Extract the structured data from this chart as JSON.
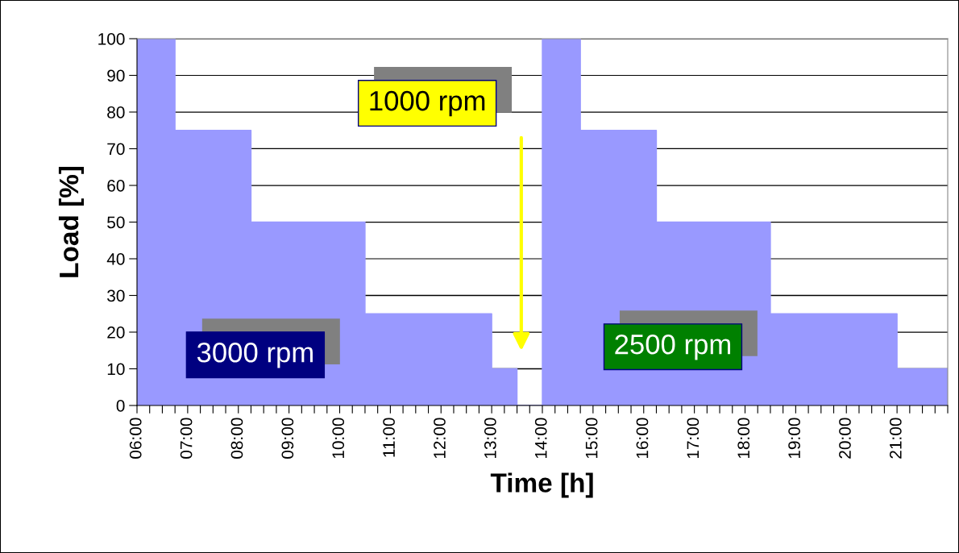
{
  "chart_data": {
    "type": "area",
    "xlabel": "Time [h]",
    "ylabel": "Load [%]",
    "series": [
      {
        "color": "#9999ff",
        "x": [
          6,
          6.75,
          6.75,
          8.25,
          8.25,
          10.5,
          10.5,
          13,
          13,
          13.5,
          13.5,
          14,
          14,
          14.75,
          14.75,
          16.25,
          16.25,
          18.5,
          18.5,
          21,
          21,
          22
        ],
        "values": [
          100,
          100,
          75,
          75,
          50,
          50,
          25,
          25,
          10,
          10,
          0,
          0,
          100,
          100,
          75,
          75,
          50,
          50,
          25,
          25,
          10,
          10
        ]
      }
    ],
    "xlim": [
      6,
      22
    ],
    "ylim": [
      0,
      100
    ],
    "xticks": [
      {
        "value": 6,
        "label": "06:00"
      },
      {
        "value": 6.25,
        "label": null
      },
      {
        "value": 6.5,
        "label": null
      },
      {
        "value": 6.75,
        "label": null
      },
      {
        "value": 7,
        "label": "07:00"
      },
      {
        "value": 7.25,
        "label": null
      },
      {
        "value": 7.5,
        "label": null
      },
      {
        "value": 7.75,
        "label": null
      },
      {
        "value": 8,
        "label": "08:00"
      },
      {
        "value": 8.25,
        "label": null
      },
      {
        "value": 8.5,
        "label": null
      },
      {
        "value": 8.75,
        "label": null
      },
      {
        "value": 9,
        "label": "09:00"
      },
      {
        "value": 9.25,
        "label": null
      },
      {
        "value": 9.5,
        "label": null
      },
      {
        "value": 9.75,
        "label": null
      },
      {
        "value": 10,
        "label": "10:00"
      },
      {
        "value": 10.25,
        "label": null
      },
      {
        "value": 10.5,
        "label": null
      },
      {
        "value": 10.75,
        "label": null
      },
      {
        "value": 11,
        "label": "11:00"
      },
      {
        "value": 11.25,
        "label": null
      },
      {
        "value": 11.5,
        "label": null
      },
      {
        "value": 11.75,
        "label": null
      },
      {
        "value": 12,
        "label": "12:00"
      },
      {
        "value": 12.25,
        "label": null
      },
      {
        "value": 12.5,
        "label": null
      },
      {
        "value": 12.75,
        "label": null
      },
      {
        "value": 13,
        "label": "13:00"
      },
      {
        "value": 13.25,
        "label": null
      },
      {
        "value": 13.5,
        "label": null
      },
      {
        "value": 13.75,
        "label": null
      },
      {
        "value": 14,
        "label": "14:00"
      },
      {
        "value": 14.25,
        "label": null
      },
      {
        "value": 14.5,
        "label": null
      },
      {
        "value": 14.75,
        "label": null
      },
      {
        "value": 15,
        "label": "15:00"
      },
      {
        "value": 15.25,
        "label": null
      },
      {
        "value": 15.5,
        "label": null
      },
      {
        "value": 15.75,
        "label": null
      },
      {
        "value": 16,
        "label": "16:00"
      },
      {
        "value": 16.25,
        "label": null
      },
      {
        "value": 16.5,
        "label": null
      },
      {
        "value": 16.75,
        "label": null
      },
      {
        "value": 17,
        "label": "17:00"
      },
      {
        "value": 17.25,
        "label": null
      },
      {
        "value": 17.5,
        "label": null
      },
      {
        "value": 17.75,
        "label": null
      },
      {
        "value": 18,
        "label": "18:00"
      },
      {
        "value": 18.25,
        "label": null
      },
      {
        "value": 18.5,
        "label": null
      },
      {
        "value": 18.75,
        "label": null
      },
      {
        "value": 19,
        "label": "19:00"
      },
      {
        "value": 19.25,
        "label": null
      },
      {
        "value": 19.5,
        "label": null
      },
      {
        "value": 19.75,
        "label": null
      },
      {
        "value": 20,
        "label": "20:00"
      },
      {
        "value": 20.25,
        "label": null
      },
      {
        "value": 20.5,
        "label": null
      },
      {
        "value": 20.75,
        "label": null
      },
      {
        "value": 21,
        "label": "21:00"
      },
      {
        "value": 21.25,
        "label": null
      },
      {
        "value": 21.5,
        "label": null
      },
      {
        "value": 21.75,
        "label": null
      },
      {
        "value": 22,
        "label": null
      }
    ],
    "yticks": [
      0,
      10,
      20,
      30,
      40,
      50,
      60,
      70,
      80,
      90,
      100
    ],
    "grid": "y",
    "annotations": [
      "3000 rpm",
      "1000 rpm",
      "2500 rpm"
    ]
  }
}
